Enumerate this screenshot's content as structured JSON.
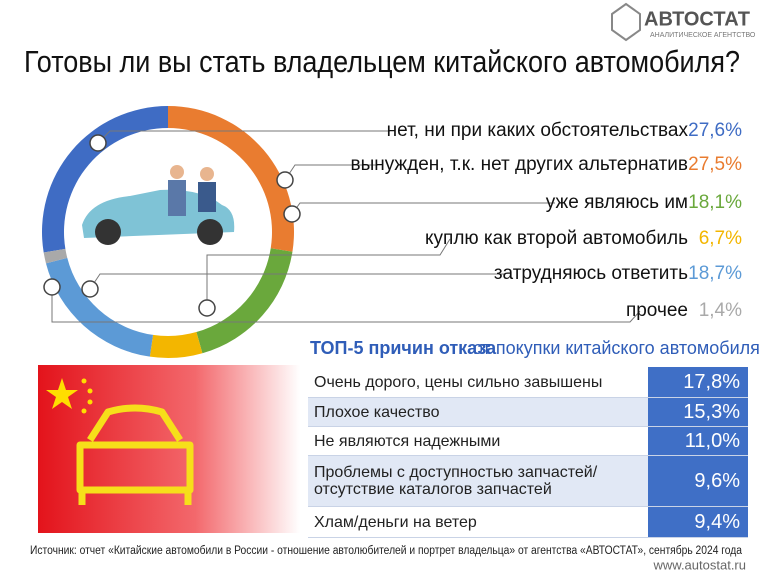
{
  "brand": {
    "name": "АВТОСТАТ",
    "tagline": "АНАЛИТИЧЕСКОЕ АГЕНТСТВО"
  },
  "chart_data": {
    "type": "pie",
    "title": "Готовы ли вы стать владельцем китайского автомобиля?",
    "categories": [
      "нет, ни при каких обстоятельствах",
      "вынужден, т.к. нет других альтернатив",
      "уже являюсь им",
      "куплю как второй автомобиль",
      "затрудняюсь ответить",
      "прочее"
    ],
    "values": [
      27.6,
      27.5,
      18.1,
      6.7,
      18.7,
      1.4
    ],
    "value_labels": [
      "27,6%",
      "27,5%",
      "18,1%",
      "6,7%",
      "18,7%",
      "1,4%"
    ],
    "colors": [
      "#3f6cc4",
      "#e97c30",
      "#6aa83c",
      "#f3b600",
      "#5c9ad6",
      "#a9a9a9"
    ]
  },
  "reasons_table": {
    "title": "ТОП-5 причин отказа",
    "subtitle": "от покупки китайского автомобиля",
    "rows": [
      [
        "Очень дорого, цены сильно завышены",
        "17,8%"
      ],
      [
        "Плохое качество",
        "15,3%"
      ],
      [
        "Не являются надежными",
        "11,0%"
      ],
      [
        "Проблемы с доступностью запчастей/\nотсутствие каталогов запчастей",
        "9,6%"
      ],
      [
        "Хлам/деньги на ветер",
        "9,4%"
      ]
    ]
  },
  "footer": {
    "source": "Источник: отчет «Китайские автомобили в России - отношение автолюбителей и портрет владельца» от агентства «АВТОСТАТ», сентябрь 2024 года",
    "url": "www.autostat.ru"
  }
}
